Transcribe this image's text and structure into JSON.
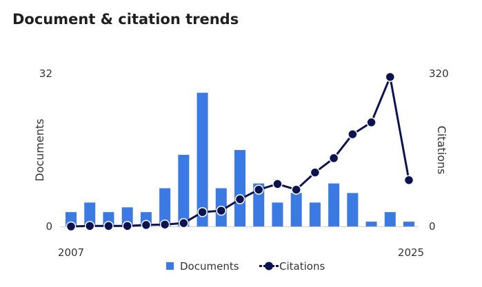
{
  "title": "Document & citation trends",
  "chart_data": {
    "type": "bar",
    "title": "Document & citation trends",
    "x": [
      2007,
      2008,
      2009,
      2010,
      2011,
      2012,
      2013,
      2014,
      2015,
      2016,
      2017,
      2018,
      2019,
      2020,
      2021,
      2022,
      2023,
      2024,
      2025
    ],
    "x_tick_labels": [
      "2007",
      "2025"
    ],
    "series": [
      {
        "name": "Documents",
        "type": "bar",
        "axis": "left",
        "color": "#3a7ae2",
        "values": [
          3,
          5,
          3,
          4,
          3,
          8,
          15,
          28,
          8,
          16,
          9,
          5,
          7,
          5,
          9,
          7,
          1,
          3,
          1
        ]
      },
      {
        "name": "Citations",
        "type": "line",
        "axis": "right",
        "color": "#0c1450",
        "values": [
          0,
          1,
          1,
          1,
          3,
          4,
          7,
          30,
          33,
          57,
          77,
          89,
          77,
          113,
          143,
          193,
          218,
          313,
          97
        ]
      }
    ],
    "ylabel_left": "Documents",
    "ylabel_right": "Citations",
    "ylim_left": [
      0,
      32
    ],
    "ylim_right": [
      0,
      320
    ],
    "left_tick_labels": [
      "0",
      "32"
    ],
    "right_tick_labels": [
      "0",
      "320"
    ],
    "grid": false,
    "legend_position": "bottom"
  }
}
